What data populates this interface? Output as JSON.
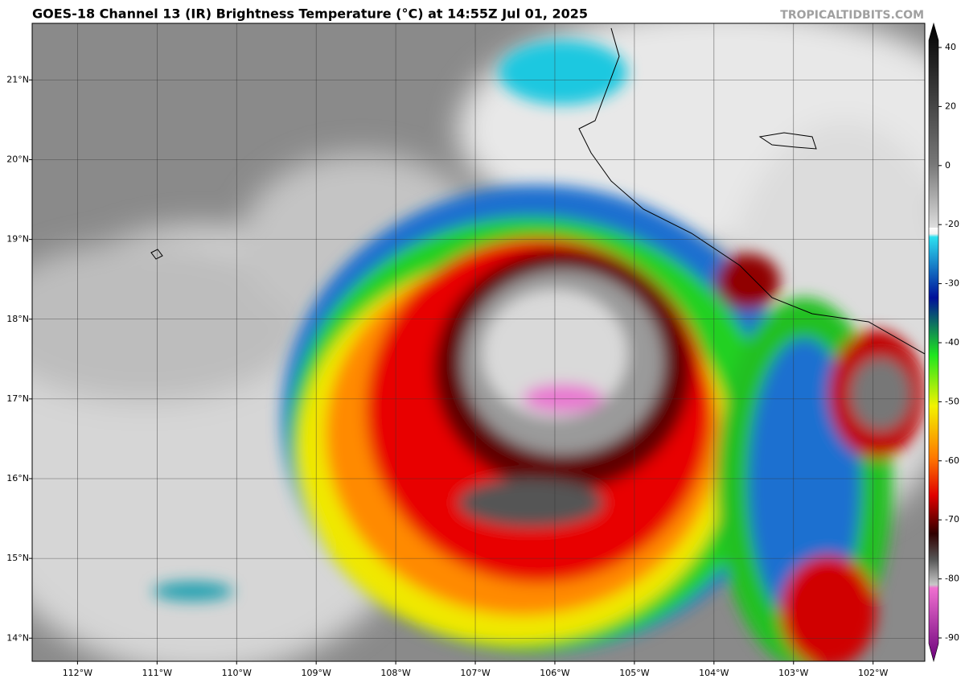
{
  "header": {
    "title": "GOES-18 Channel 13 (IR) Brightness Temperature (°C) at 14:55Z Jul 01, 2025",
    "source": "TROPICALTIDBITS.COM"
  },
  "map": {
    "lon_range": [
      -112.57,
      -101.35
    ],
    "lat_range": [
      13.71,
      21.71
    ],
    "lon_ticks": [
      {
        "value": -112,
        "label": "112°W"
      },
      {
        "value": -111,
        "label": "111°W"
      },
      {
        "value": -110,
        "label": "110°W"
      },
      {
        "value": -109,
        "label": "109°W"
      },
      {
        "value": -108,
        "label": "108°W"
      },
      {
        "value": -107,
        "label": "107°W"
      },
      {
        "value": -106,
        "label": "106°W"
      },
      {
        "value": -105,
        "label": "105°W"
      },
      {
        "value": -104,
        "label": "104°W"
      },
      {
        "value": -103,
        "label": "103°W"
      },
      {
        "value": -102,
        "label": "102°W"
      }
    ],
    "lat_ticks": [
      {
        "value": 21,
        "label": "21°N"
      },
      {
        "value": 20,
        "label": "20°N"
      },
      {
        "value": 19,
        "label": "19°N"
      },
      {
        "value": 18,
        "label": "18°N"
      },
      {
        "value": 17,
        "label": "17°N"
      },
      {
        "value": 16,
        "label": "16°N"
      },
      {
        "value": 15,
        "label": "15°N"
      },
      {
        "value": 14,
        "label": "14°N"
      }
    ]
  },
  "colorbar": {
    "ticks": [
      40,
      20,
      0,
      -20,
      -30,
      -40,
      -50,
      -60,
      -70,
      -80,
      -90
    ]
  }
}
